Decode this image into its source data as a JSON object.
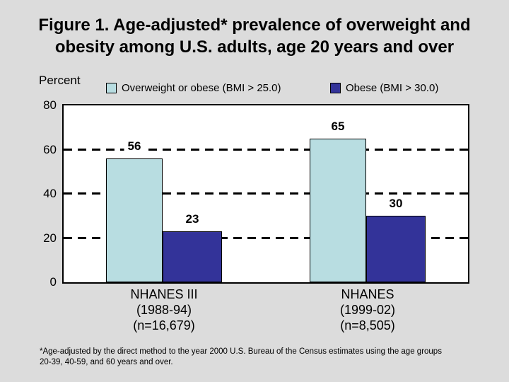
{
  "slide": {
    "background_color": "#dcdcdc",
    "title_line1": "Figure 1. Age-adjusted* prevalence of overweight and",
    "title_line2": "obesity among U.S. adults, age 20 years and over",
    "footnote_line1": "*Age-adjusted by the direct method to the year 2000 U.S. Bureau of the Census estimates using the age groups",
    "footnote_line2": "20-39, 40-59, and 60 years and over."
  },
  "chart_data": {
    "type": "bar",
    "title": "",
    "ylabel": "Percent",
    "xlabel": "",
    "ylim": [
      0,
      80
    ],
    "yticks": [
      80,
      60,
      40,
      20,
      0
    ],
    "gridlines": [
      60,
      40,
      20
    ],
    "grid_style": "dashed",
    "legend_position": "top",
    "plot_background": "#ffffff",
    "categories": [
      "NHANES III (1988-94) (n=16,679)",
      "NHANES (1999-02) (n=8,505)"
    ],
    "category_lines": [
      [
        "NHANES III",
        "(1988-94)",
        "(n=16,679)"
      ],
      [
        "NHANES",
        "(1999-02)",
        "(n=8,505)"
      ]
    ],
    "series": [
      {
        "name": "Overweight or obese (BMI > 25.0)",
        "color": "#b8dde1",
        "values": [
          56,
          65
        ]
      },
      {
        "name": "Obese (BMI > 30.0)",
        "color": "#333399",
        "values": [
          23,
          30
        ]
      }
    ]
  }
}
